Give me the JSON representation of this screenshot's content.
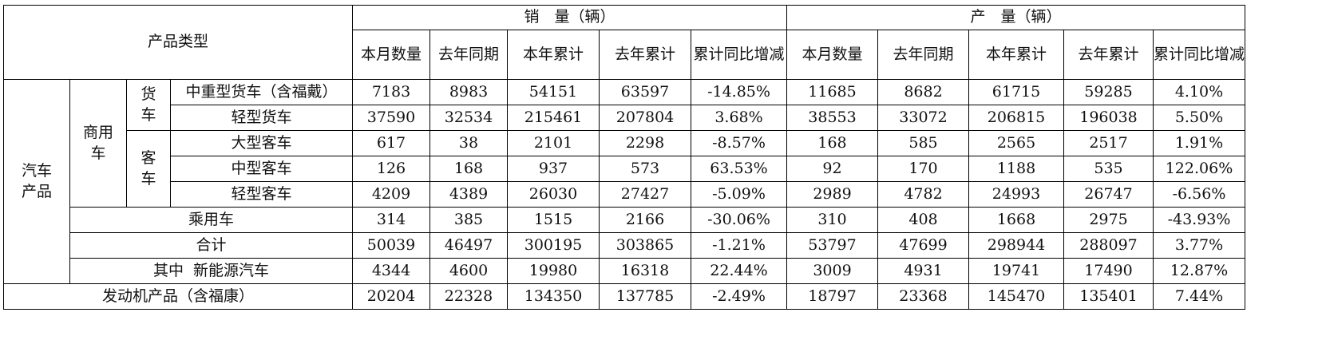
{
  "header": {
    "product_type": "产品类型",
    "sales_group": "销　量（辆）",
    "production_group": "产　量（辆）",
    "columns": [
      "本月数量",
      "去年同期",
      "本年累计",
      "去年累计",
      "累计同比增减"
    ]
  },
  "labels": {
    "auto_products": "汽车产品",
    "commercial": "商用车",
    "truck": "货车",
    "bus": "客车",
    "medium_heavy_truck": "中重型货车（含福戴）",
    "light_truck": "轻型货车",
    "large_bus": "大型客车",
    "medium_bus": "中型客车",
    "light_bus": "轻型客车",
    "passenger": "乘用车",
    "total": "合计",
    "nev": "其中  新能源汽车",
    "engine": "发动机产品（含福康）"
  },
  "rows": [
    {
      "sales": [
        "7183",
        "8983",
        "54151",
        "63597",
        "-14.85%"
      ],
      "production": [
        "11685",
        "8682",
        "61715",
        "59285",
        "4.10%"
      ]
    },
    {
      "sales": [
        "37590",
        "32534",
        "215461",
        "207804",
        "3.68%"
      ],
      "production": [
        "38553",
        "33072",
        "206815",
        "196038",
        "5.50%"
      ]
    },
    {
      "sales": [
        "617",
        "38",
        "2101",
        "2298",
        "-8.57%"
      ],
      "production": [
        "168",
        "585",
        "2565",
        "2517",
        "1.91%"
      ]
    },
    {
      "sales": [
        "126",
        "168",
        "937",
        "573",
        "63.53%"
      ],
      "production": [
        "92",
        "170",
        "1188",
        "535",
        "122.06%"
      ]
    },
    {
      "sales": [
        "4209",
        "4389",
        "26030",
        "27427",
        "-5.09%"
      ],
      "production": [
        "2989",
        "4782",
        "24993",
        "26747",
        "-6.56%"
      ]
    },
    {
      "sales": [
        "314",
        "385",
        "1515",
        "2166",
        "-30.06%"
      ],
      "production": [
        "310",
        "408",
        "1668",
        "2975",
        "-43.93%"
      ]
    },
    {
      "sales": [
        "50039",
        "46497",
        "300195",
        "303865",
        "-1.21%"
      ],
      "production": [
        "53797",
        "47699",
        "298944",
        "288097",
        "3.77%"
      ]
    },
    {
      "sales": [
        "4344",
        "4600",
        "19980",
        "16318",
        "22.44%"
      ],
      "production": [
        "3009",
        "4931",
        "19741",
        "17490",
        "12.87%"
      ]
    },
    {
      "sales": [
        "20204",
        "22328",
        "134350",
        "137785",
        "-2.49%"
      ],
      "production": [
        "18797",
        "23368",
        "145470",
        "135401",
        "7.44%"
      ]
    }
  ]
}
